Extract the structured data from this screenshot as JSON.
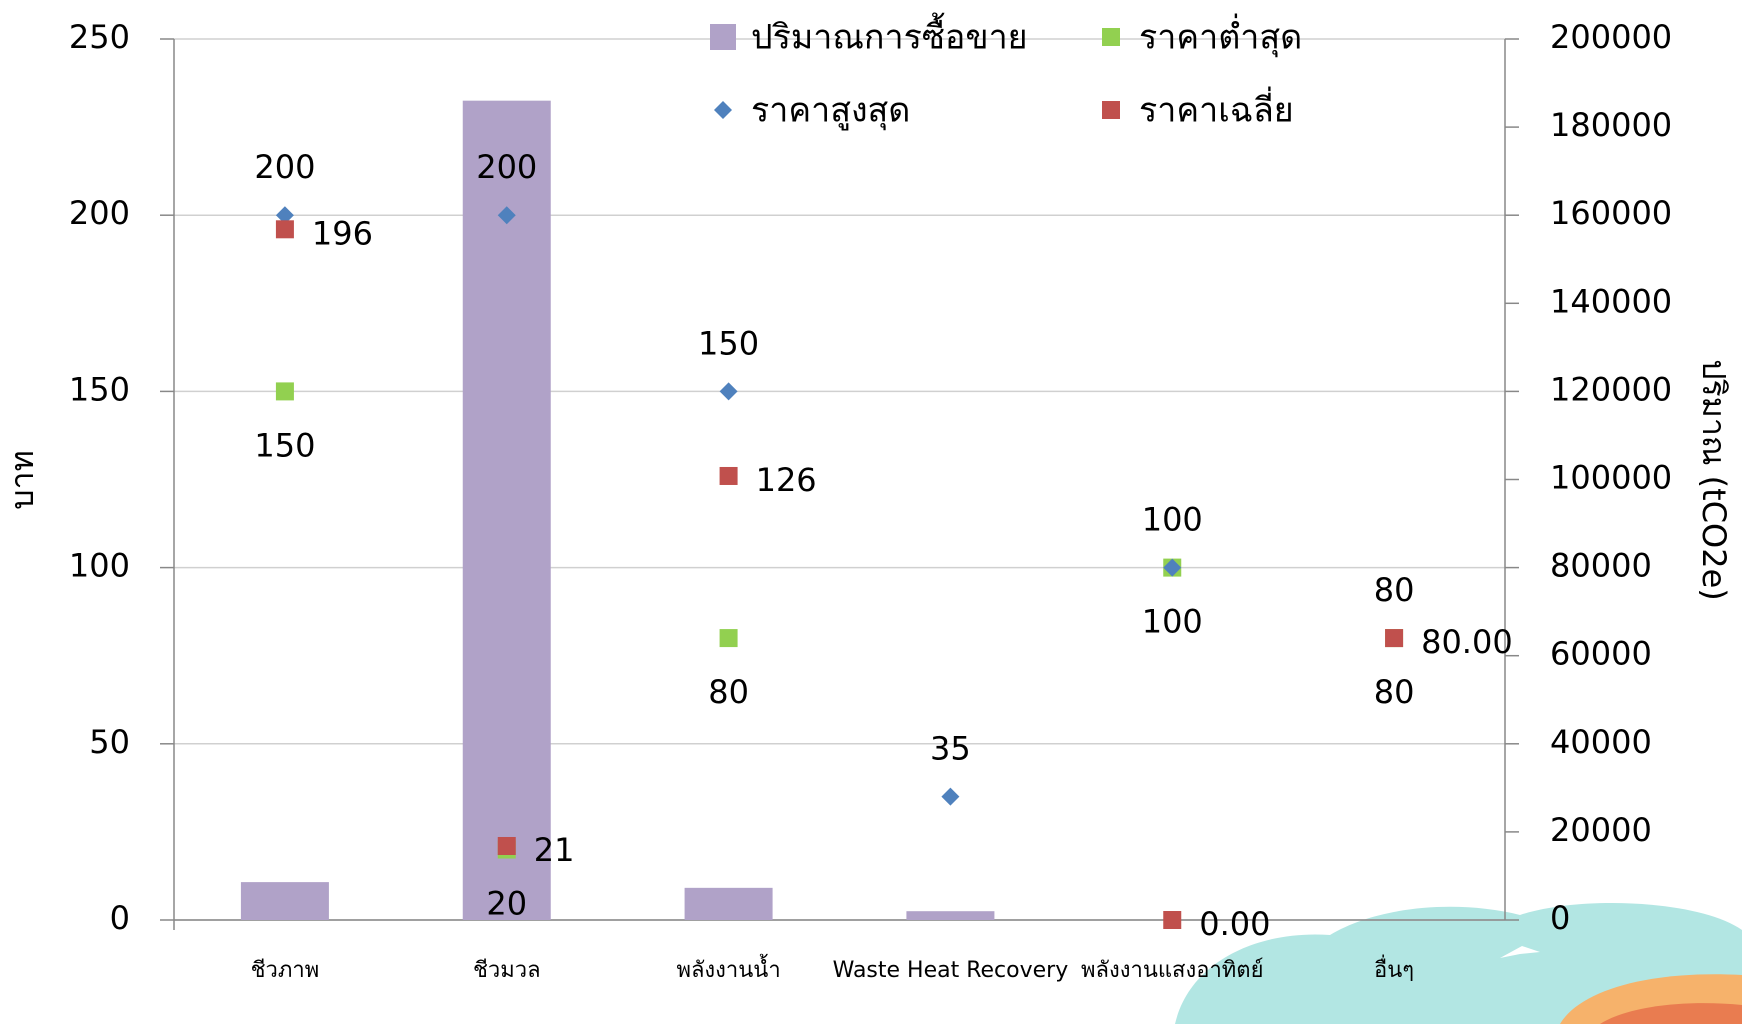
{
  "chart_data": {
    "type": "bar-scatter",
    "categories": [
      "ชีวภาพ",
      "ชีวมวล",
      "พลังงานน้ำ",
      "Waste Heat Recovery",
      "พลังงานแสงอาทิตย์",
      "อื่นๆ"
    ],
    "y_label": "บาท",
    "y2_label": "ปริมาณ (tCO2e)",
    "ylim": [
      0,
      250
    ],
    "yticks": [
      0,
      50,
      100,
      150,
      200,
      250
    ],
    "y2lim": [
      0,
      200000
    ],
    "y2ticks": [
      0,
      20000,
      40000,
      60000,
      80000,
      100000,
      120000,
      140000,
      160000,
      180000,
      200000
    ],
    "grid": true,
    "series": [
      {
        "name": "ปริมาณการซื้อขาย",
        "type": "bar",
        "axis": "y2",
        "color": "#b0a2c8",
        "values": [
          8600,
          186000,
          7300,
          2000,
          0,
          0
        ]
      },
      {
        "name": "ราคาต่ำสุด",
        "type": "square",
        "color": "#92d050",
        "label_position": "below",
        "values": [
          150,
          20,
          80,
          null,
          100,
          80
        ]
      },
      {
        "name": "ราคาสูงสุด",
        "type": "diamond",
        "color": "#4f81bd",
        "label_position": "above",
        "values": [
          200,
          200,
          150,
          35,
          100,
          80
        ]
      },
      {
        "name": "ราคาเฉลี่ย",
        "type": "square",
        "color": "#c0504d",
        "label_position": "right",
        "values": [
          196,
          21,
          126,
          null,
          0,
          80
        ],
        "value_labels": [
          "196",
          "21",
          "126",
          null,
          "0.00",
          "80.00"
        ]
      }
    ]
  }
}
